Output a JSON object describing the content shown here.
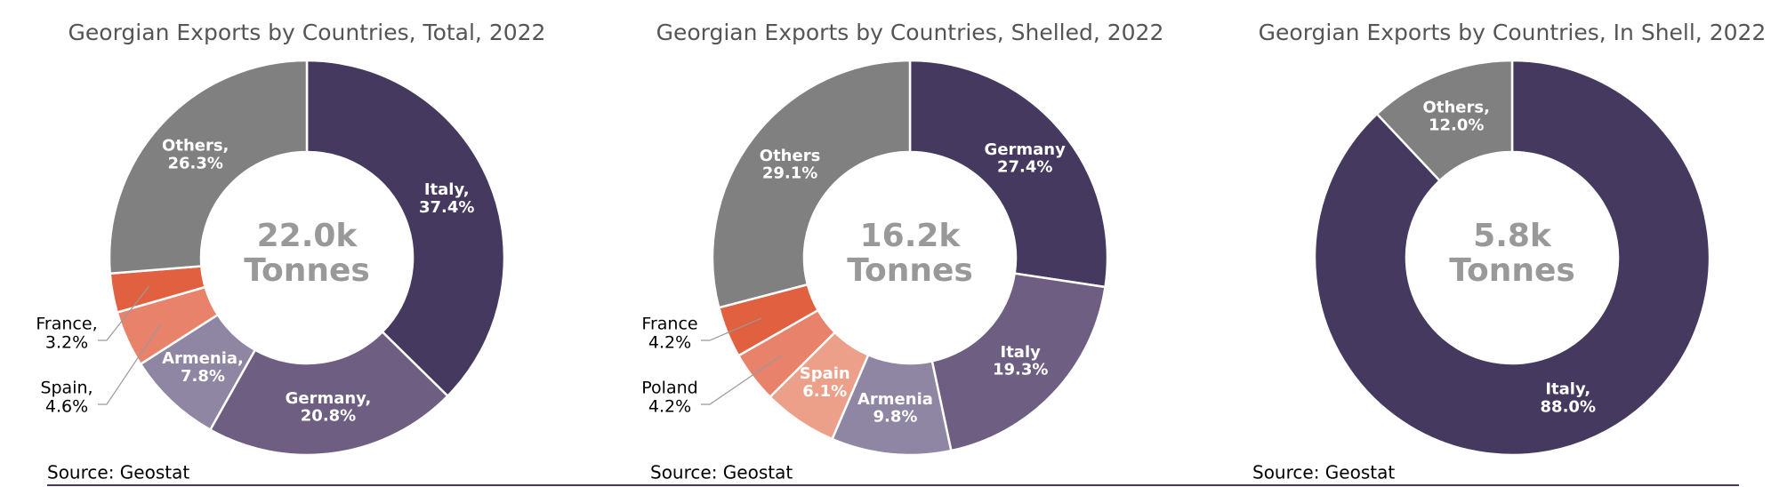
{
  "chart_data": [
    {
      "type": "donut",
      "title": "Georgian Exports by Countries, Total, 2022",
      "center_label": "22.0k",
      "center_unit": "Tonnes",
      "source": "Source: Geostat",
      "categories": [
        "Italy,",
        "Germany,",
        "Armenia,",
        "Spain,",
        "France,",
        "Others,"
      ],
      "values": [
        37.4,
        20.8,
        7.8,
        4.6,
        3.2,
        26.3
      ],
      "value_labels": [
        "37.4%",
        "20.8%",
        "7.8%",
        "4.6%",
        "3.2%",
        "26.3%"
      ],
      "colors": [
        "#46395f",
        "#6e5f82",
        "#8f86a3",
        "#e8826a",
        "#e06040",
        "#808080"
      ]
    },
    {
      "type": "donut",
      "title": "Georgian Exports by Countries, Shelled, 2022",
      "center_label": "16.2k",
      "center_unit": "Tonnes",
      "source": "Source: Geostat",
      "categories": [
        "Germany",
        "Italy",
        "Armenia",
        "Spain",
        "Poland",
        "France",
        "Others"
      ],
      "values": [
        27.4,
        19.3,
        9.8,
        6.1,
        4.2,
        4.2,
        29.1
      ],
      "value_labels": [
        "27.4%",
        "19.3%",
        "9.8%",
        "6.1%",
        "4.2%",
        "4.2%",
        "29.1%"
      ],
      "colors": [
        "#46395f",
        "#6e5f82",
        "#8f86a3",
        "#eca08a",
        "#e8826a",
        "#e06040",
        "#808080"
      ]
    },
    {
      "type": "donut",
      "title": "Georgian Exports by Countries, In Shell, 2022",
      "center_label": "5.8k",
      "center_unit": "Tonnes",
      "source": "Source: Geostat",
      "categories": [
        "Italy,",
        "Others,"
      ],
      "values": [
        88.0,
        12.0
      ],
      "value_labels": [
        "88.0%",
        "12.0%"
      ],
      "colors": [
        "#46395f",
        "#808080"
      ]
    }
  ]
}
